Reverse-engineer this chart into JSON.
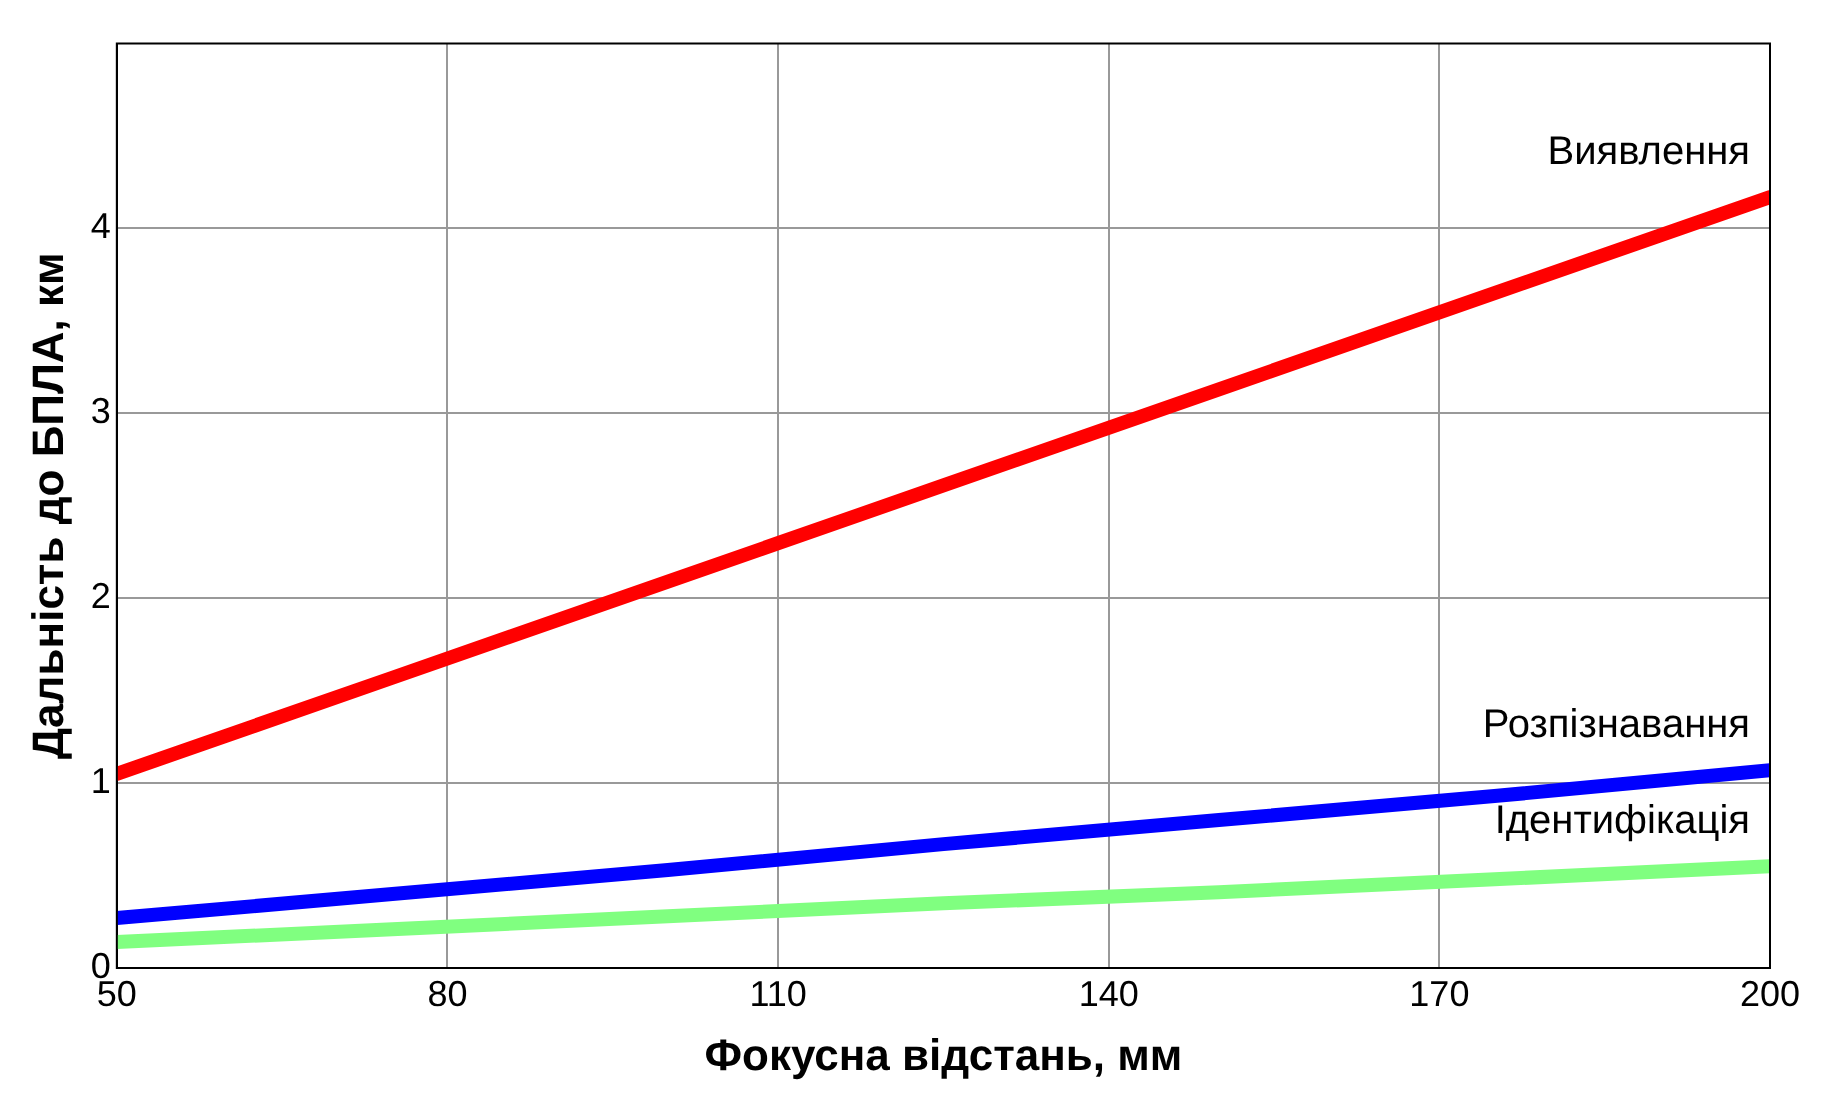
{
  "chart_data": {
    "type": "line",
    "xlabel": "Фокусна відстань, мм",
    "ylabel": "Дальність до БПЛА, км",
    "x": [
      50,
      75,
      100,
      125,
      150,
      175,
      200
    ],
    "series": [
      {
        "name": "Виявлення",
        "color": "#ff0000",
        "values": [
          1.05,
          1.57,
          2.09,
          2.61,
          3.13,
          3.65,
          4.17
        ]
      },
      {
        "name": "Розпізнавання",
        "color": "#0000ff",
        "values": [
          0.27,
          0.4,
          0.53,
          0.67,
          0.8,
          0.93,
          1.07
        ]
      },
      {
        "name": "Ідентифікація",
        "color": "#80ff80",
        "values": [
          0.14,
          0.21,
          0.28,
          0.35,
          0.41,
          0.48,
          0.55
        ]
      }
    ],
    "xlim": [
      50,
      200
    ],
    "xticks": [
      50,
      80,
      110,
      140,
      170,
      200
    ],
    "ylim": [
      0,
      5
    ],
    "yticks": [
      0,
      1,
      2,
      3,
      4
    ],
    "grid": true,
    "legend": false,
    "marker": "none",
    "line_style": "solid"
  }
}
